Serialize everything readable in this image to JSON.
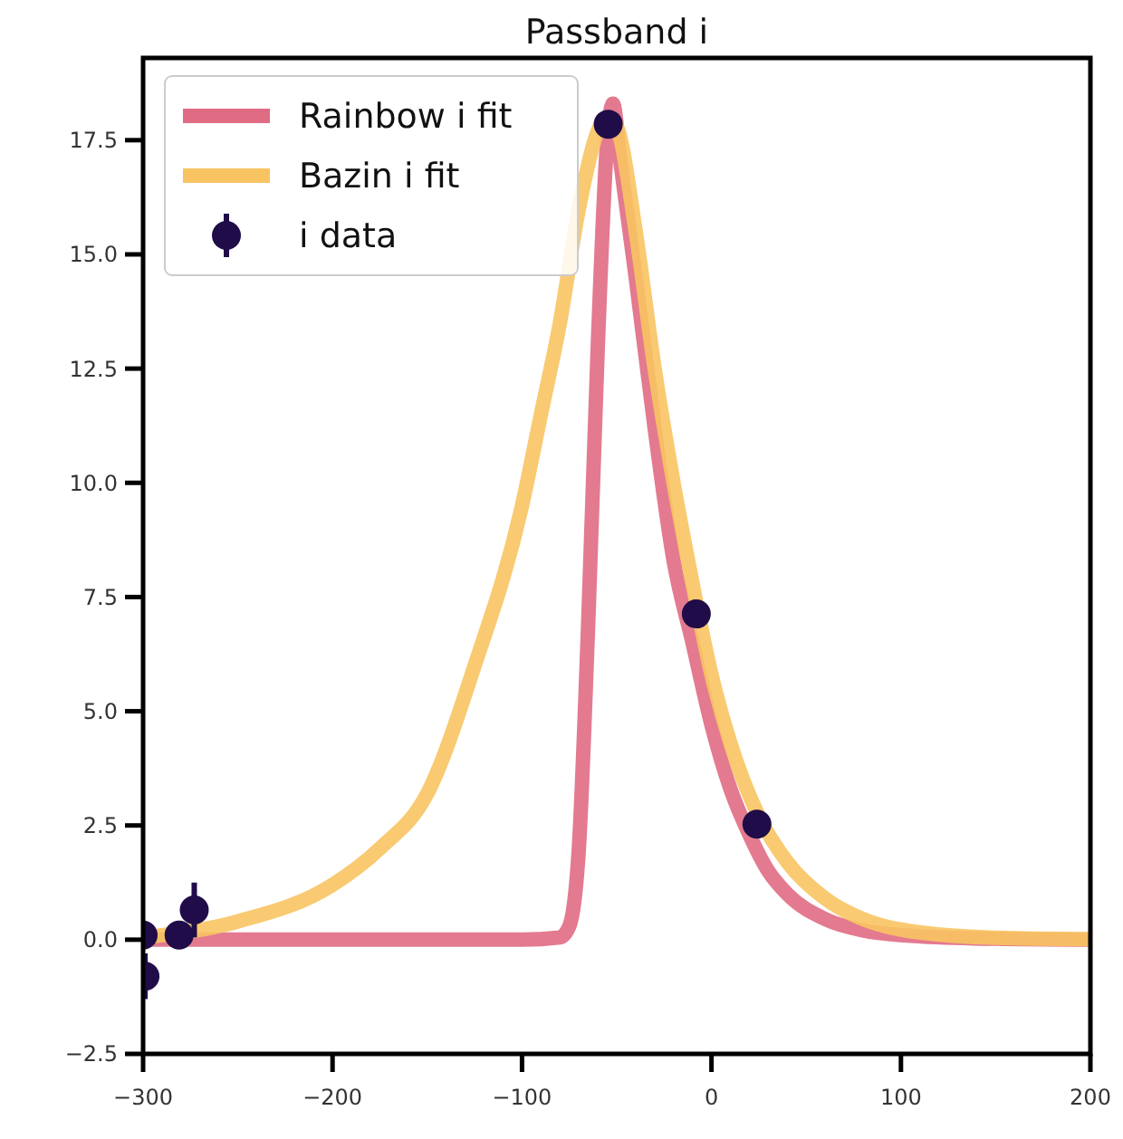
{
  "chart_data": {
    "type": "line",
    "title": "Passband i",
    "xlim": [
      -300,
      200
    ],
    "ylim": [
      -2.5,
      19.3
    ],
    "xticks": [
      -300,
      -200,
      -100,
      0,
      100,
      200
    ],
    "yticks": [
      {
        "value": -2.5,
        "label": "−2.5"
      },
      {
        "value": 0,
        "label": "0.0"
      },
      {
        "value": 2.5,
        "label": "2.5"
      },
      {
        "value": 5,
        "label": "5.0"
      },
      {
        "value": 7.5,
        "label": "7.5"
      },
      {
        "value": 10,
        "label": "10.0"
      },
      {
        "value": 12.5,
        "label": "12.5"
      },
      {
        "value": 15,
        "label": "15.0"
      },
      {
        "value": 17.5,
        "label": "17.5"
      }
    ],
    "grid": false,
    "legend": "top left",
    "series": [
      {
        "name": "Rainbow i fit",
        "color": "#e06c84",
        "x": [
          -300,
          -200,
          -100,
          -80,
          -75,
          -70,
          -65,
          -60,
          -55,
          -52,
          -48,
          -40,
          -30,
          -20,
          -10,
          0,
          10,
          20,
          30,
          40,
          60,
          80,
          100,
          150,
          200
        ],
        "values": [
          0,
          0,
          0,
          0.05,
          0.3,
          2,
          7,
          13,
          17.5,
          18.3,
          17,
          14.5,
          11.2,
          8.3,
          6.5,
          4.7,
          3.3,
          2.3,
          1.5,
          1.0,
          0.45,
          0.2,
          0.1,
          0.02,
          0
        ]
      },
      {
        "name": "Bazin i fit",
        "color": "#f8c462",
        "x": [
          -300,
          -250,
          -200,
          -175,
          -150,
          -125,
          -100,
          -90,
          -80,
          -70,
          -60,
          -55,
          -50,
          -40,
          -30,
          -20,
          -10,
          0,
          10,
          25,
          40,
          60,
          80,
          100,
          150,
          200
        ],
        "values": [
          0.05,
          0.4,
          1.2,
          2,
          3.2,
          6,
          9.5,
          11.5,
          13.5,
          16,
          17.7,
          18,
          17.8,
          15.5,
          12.5,
          10,
          7.8,
          5.8,
          4.3,
          2.7,
          1.7,
          0.9,
          0.45,
          0.22,
          0.04,
          0.01
        ]
      },
      {
        "name": "i data",
        "type": "scatter",
        "color": "#1f0c48",
        "marker": "circle",
        "x": [
          -300,
          -299,
          -281,
          -273,
          -54.5,
          -8,
          24
        ],
        "values": [
          0.1,
          -0.8,
          0.1,
          0.65,
          17.85,
          7.13,
          2.53
        ],
        "errors": [
          0.2,
          0.5,
          0.2,
          0.6,
          0.2,
          0.2,
          0.2
        ]
      }
    ]
  }
}
